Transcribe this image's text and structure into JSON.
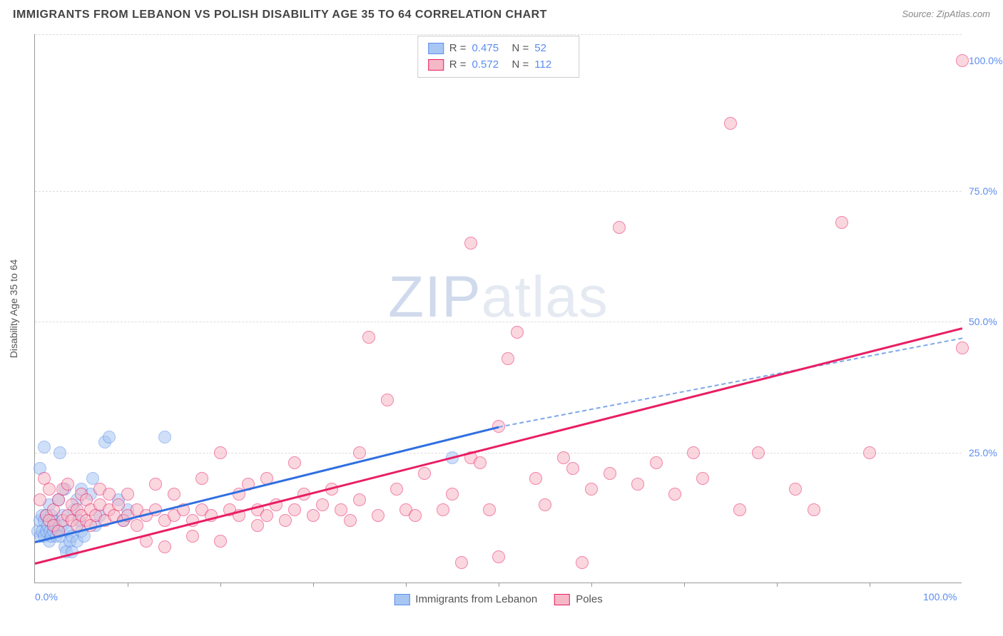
{
  "title": "IMMIGRANTS FROM LEBANON VS POLISH DISABILITY AGE 35 TO 64 CORRELATION CHART",
  "source": "Source: ZipAtlas.com",
  "watermark_a": "ZIP",
  "watermark_b": "atlas",
  "chart": {
    "type": "scatter",
    "y_axis_title": "Disability Age 35 to 64",
    "xlim": [
      0,
      100
    ],
    "ylim": [
      0,
      105
    ],
    "x_ticks_minor": [
      10,
      20,
      30,
      40,
      50,
      60,
      70,
      80,
      90
    ],
    "x_tick_labels": [
      {
        "pos": 0,
        "label": "0.0%"
      },
      {
        "pos": 100,
        "label": "100.0%"
      }
    ],
    "y_grid": [
      25,
      50,
      75,
      105
    ],
    "y_tick_labels": [
      {
        "pos": 25,
        "label": "25.0%"
      },
      {
        "pos": 50,
        "label": "50.0%"
      },
      {
        "pos": 75,
        "label": "75.0%"
      },
      {
        "pos": 100,
        "label": "100.0%"
      }
    ],
    "background_color": "#ffffff",
    "grid_color": "#dddddd",
    "axis_color": "#999999",
    "point_radius": 9,
    "point_opacity": 0.55,
    "series": [
      {
        "name": "Immigrants from Lebanon",
        "fill": "#a7c6f2",
        "stroke": "#5b8def",
        "r": 0.475,
        "n": 52,
        "trend": {
          "x1": 0,
          "y1": 8,
          "x2": 50,
          "y2": 30,
          "x2_dash": 100,
          "y2_dash": 47,
          "color": "#2f6fe0",
          "dash_color": "#7da8e8"
        },
        "points": [
          [
            0.3,
            10
          ],
          [
            0.5,
            12
          ],
          [
            0.6,
            9
          ],
          [
            0.8,
            13
          ],
          [
            0.8,
            10
          ],
          [
            1.0,
            12
          ],
          [
            1.0,
            9
          ],
          [
            1.2,
            10
          ],
          [
            1.2,
            13
          ],
          [
            1.4,
            11
          ],
          [
            1.5,
            8
          ],
          [
            1.5,
            15
          ],
          [
            1.6,
            10
          ],
          [
            1.8,
            9
          ],
          [
            1.8,
            13
          ],
          [
            2.0,
            12
          ],
          [
            2.0,
            10
          ],
          [
            2.2,
            11
          ],
          [
            2.3,
            9
          ],
          [
            2.5,
            16
          ],
          [
            2.5,
            10
          ],
          [
            2.7,
            25
          ],
          [
            2.8,
            9
          ],
          [
            3.0,
            13
          ],
          [
            3.0,
            11
          ],
          [
            3.2,
            7
          ],
          [
            3.2,
            18
          ],
          [
            3.4,
            6
          ],
          [
            3.5,
            10
          ],
          [
            3.8,
            8
          ],
          [
            4.0,
            9
          ],
          [
            4.0,
            6
          ],
          [
            4.2,
            14
          ],
          [
            4.5,
            16
          ],
          [
            4.5,
            8
          ],
          [
            4.8,
            12
          ],
          [
            5.0,
            10
          ],
          [
            5.0,
            18
          ],
          [
            5.3,
            9
          ],
          [
            6.0,
            17
          ],
          [
            6.2,
            20
          ],
          [
            6.5,
            11
          ],
          [
            7.0,
            13
          ],
          [
            7.5,
            27
          ],
          [
            0.5,
            22
          ],
          [
            1.0,
            26
          ],
          [
            8.0,
            28
          ],
          [
            9.0,
            16
          ],
          [
            9.5,
            12
          ],
          [
            10,
            14
          ],
          [
            14.0,
            28
          ],
          [
            45.0,
            24
          ]
        ]
      },
      {
        "name": "Poles",
        "fill": "#f6b8c6",
        "stroke": "#e91e63",
        "r": 0.572,
        "n": 112,
        "trend": {
          "x1": 0,
          "y1": 4,
          "x2": 100,
          "y2": 49,
          "color": "#e91e63"
        },
        "points": [
          [
            0.5,
            16
          ],
          [
            1.0,
            20
          ],
          [
            1.2,
            13
          ],
          [
            1.5,
            12
          ],
          [
            1.5,
            18
          ],
          [
            2.0,
            11
          ],
          [
            2.0,
            14
          ],
          [
            2.5,
            10
          ],
          [
            2.5,
            16
          ],
          [
            3.0,
            12
          ],
          [
            3.0,
            18
          ],
          [
            3.5,
            13
          ],
          [
            3.5,
            19
          ],
          [
            4.0,
            12
          ],
          [
            4.0,
            15
          ],
          [
            4.5,
            11
          ],
          [
            4.5,
            14
          ],
          [
            5.0,
            13
          ],
          [
            5.0,
            17
          ],
          [
            5.5,
            12
          ],
          [
            5.5,
            16
          ],
          [
            6.0,
            14
          ],
          [
            6.0,
            11
          ],
          [
            6.5,
            13
          ],
          [
            7.0,
            15
          ],
          [
            7.0,
            18
          ],
          [
            7.5,
            12
          ],
          [
            8.0,
            14
          ],
          [
            8.0,
            17
          ],
          [
            8.5,
            13
          ],
          [
            9.0,
            15
          ],
          [
            9.5,
            12
          ],
          [
            10,
            13
          ],
          [
            10,
            17
          ],
          [
            11,
            14
          ],
          [
            11,
            11
          ],
          [
            12,
            13
          ],
          [
            12,
            8
          ],
          [
            13,
            14
          ],
          [
            13,
            19
          ],
          [
            14,
            12
          ],
          [
            14,
            7
          ],
          [
            15,
            13
          ],
          [
            15,
            17
          ],
          [
            16,
            14
          ],
          [
            17,
            12
          ],
          [
            17,
            9
          ],
          [
            18,
            14
          ],
          [
            18,
            20
          ],
          [
            19,
            13
          ],
          [
            20,
            25
          ],
          [
            20,
            8
          ],
          [
            21,
            14
          ],
          [
            22,
            13
          ],
          [
            22,
            17
          ],
          [
            23,
            19
          ],
          [
            24,
            14
          ],
          [
            24,
            11
          ],
          [
            25,
            13
          ],
          [
            25,
            20
          ],
          [
            26,
            15
          ],
          [
            27,
            12
          ],
          [
            28,
            14
          ],
          [
            28,
            23
          ],
          [
            29,
            17
          ],
          [
            30,
            13
          ],
          [
            31,
            15
          ],
          [
            32,
            18
          ],
          [
            33,
            14
          ],
          [
            34,
            12
          ],
          [
            35,
            16
          ],
          [
            35,
            25
          ],
          [
            36,
            47
          ],
          [
            37,
            13
          ],
          [
            38,
            35
          ],
          [
            39,
            18
          ],
          [
            40,
            14
          ],
          [
            41,
            13
          ],
          [
            42,
            21
          ],
          [
            44,
            14
          ],
          [
            45,
            17
          ],
          [
            46,
            4
          ],
          [
            47,
            24
          ],
          [
            48,
            23
          ],
          [
            49,
            14
          ],
          [
            50,
            30
          ],
          [
            50,
            5
          ],
          [
            51,
            43
          ],
          [
            52,
            48
          ],
          [
            54,
            20
          ],
          [
            55,
            15
          ],
          [
            57,
            24
          ],
          [
            58,
            22
          ],
          [
            59,
            4
          ],
          [
            60,
            18
          ],
          [
            47,
            65
          ],
          [
            62,
            21
          ],
          [
            63,
            68
          ],
          [
            65,
            19
          ],
          [
            67,
            23
          ],
          [
            69,
            17
          ],
          [
            71,
            25
          ],
          [
            72,
            20
          ],
          [
            75,
            88
          ],
          [
            76,
            14
          ],
          [
            78,
            25
          ],
          [
            82,
            18
          ],
          [
            84,
            14
          ],
          [
            87,
            69
          ],
          [
            90,
            25
          ],
          [
            100,
            100
          ],
          [
            100,
            45
          ]
        ]
      }
    ],
    "bottom_legend": [
      {
        "label": "Immigrants from Lebanon",
        "fill": "#a7c6f2",
        "stroke": "#5b8def"
      },
      {
        "label": "Poles",
        "fill": "#f6b8c6",
        "stroke": "#e91e63"
      }
    ]
  }
}
